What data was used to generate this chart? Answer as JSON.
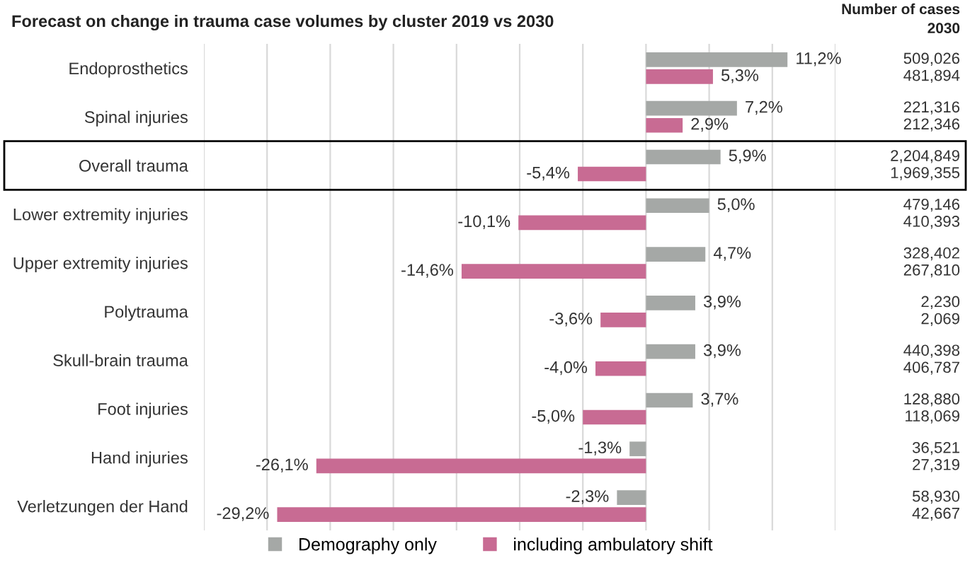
{
  "chart_data": {
    "type": "bar",
    "orientation": "horizontal",
    "title": "Forecast on change in trauma case volumes by cluster 2019 vs 2030",
    "categories": [
      "Endoprosthetics",
      "Spinal injuries",
      "Overall trauma",
      "Lower extremity injuries",
      "Upper extremity injuries",
      "Polytrauma",
      "Skull-brain trauma",
      "Foot injuries",
      "Hand injuries",
      "Verletzungen der Hand"
    ],
    "series": [
      {
        "name": "Demography only",
        "color": "#a5a8a6",
        "values": [
          11.2,
          7.2,
          5.9,
          5.0,
          4.7,
          3.9,
          3.9,
          3.7,
          -1.3,
          -2.3
        ],
        "value_labels": [
          "11,2%",
          "7,2%",
          "5,9%",
          "5,0%",
          "4,7%",
          "3,9%",
          "3,9%",
          "3,7%",
          "-1,3%",
          "-2,3%"
        ]
      },
      {
        "name": "including ambulatory shift",
        "color": "#c86b93",
        "values": [
          5.3,
          2.9,
          -5.4,
          -10.1,
          -14.6,
          -3.6,
          -4.0,
          -5.0,
          -26.1,
          -29.2
        ],
        "value_labels": [
          "5,3%",
          "2,9%",
          "-5,4%",
          "-10,1%",
          "-14,6%",
          "-3,6%",
          "-4,0%",
          "-5,0%",
          "-26,1%",
          "-29,2%"
        ]
      }
    ],
    "xlim": [
      -35,
      15
    ],
    "xticks": [
      {
        "value": -35,
        "label": null
      },
      {
        "value": -30,
        "label": null
      },
      {
        "value": -25,
        "label": null
      },
      {
        "value": -20,
        "label": null
      },
      {
        "value": -15,
        "label": null
      },
      {
        "value": -10,
        "label": null
      },
      {
        "value": -5,
        "label": null
      },
      {
        "value": 0,
        "label": null
      },
      {
        "value": 5,
        "label": null
      },
      {
        "value": 10,
        "label": null
      },
      {
        "value": 15,
        "label": null
      }
    ],
    "grid": "x",
    "tick_labels": "y",
    "legend": "bottom",
    "annotations": [
      "Number of cases\n2030",
      "509,026",
      "481,894",
      "221,316",
      "212,346",
      "2,204,849",
      "1,969,355",
      "479,146",
      "410,393",
      "328,402",
      "267,810",
      "2,230",
      "2,069",
      "440,398",
      "406,787",
      "128,880",
      "118,069",
      "36,521",
      "27,319",
      "58,930",
      "42,667"
    ]
  }
}
